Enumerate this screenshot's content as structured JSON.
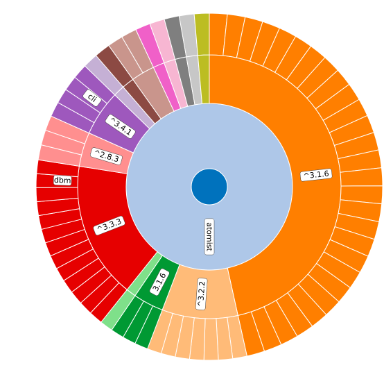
{
  "chart_data": {
    "type": "sunburst",
    "root": {
      "name": "",
      "color": "#0072bd"
    },
    "center_node": {
      "name": "atomist",
      "color": "#aec7e8"
    },
    "legend": "none",
    "children": [
      {
        "name": "^3.1.6",
        "color": "#ff7f00",
        "value": 50,
        "leaf_count": 28
      },
      {
        "name": "^3.2.2",
        "color": "#ffbb78",
        "value": 10,
        "leaf_count": 7
      },
      {
        "name": "3.1.6",
        "color": "#009933",
        "value": 4,
        "leaf_count": 3
      },
      {
        "name": "",
        "color": "#7fe08a",
        "value": 1.3,
        "leaf_count": 1
      },
      {
        "name": "^3.3.3",
        "color": "#e60000",
        "value": 18,
        "leaf_count": 13,
        "leaf_labels": [
          "dbm"
        ]
      },
      {
        "name": "^2.8.3",
        "color": "#ff8f8f",
        "value": 4.5,
        "leaf_count": 3
      },
      {
        "name": "^3.4.1",
        "color": "#9e58bd",
        "value": 6,
        "leaf_count": 4,
        "leaf_labels": [
          "cli"
        ]
      },
      {
        "name": "",
        "color": "#c5b0d5",
        "value": 1.5,
        "leaf_count": 1
      },
      {
        "name": "",
        "color": "#8c4a43",
        "value": 1.6,
        "leaf_count": 1
      },
      {
        "name": "",
        "color": "#c9958c",
        "value": 3.1,
        "leaf_count": 2
      },
      {
        "name": "",
        "color": "#f060c8",
        "value": 1.5,
        "leaf_count": 1
      },
      {
        "name": "",
        "color": "#f7b6d2",
        "value": 1.5,
        "leaf_count": 1
      },
      {
        "name": "",
        "color": "#7f7f7f",
        "value": 1.5,
        "leaf_count": 1
      },
      {
        "name": "",
        "color": "#c7c7c7",
        "value": 1.5,
        "leaf_count": 1
      },
      {
        "name": "",
        "color": "#bcbd22",
        "value": 1.5,
        "leaf_count": 1
      }
    ]
  }
}
